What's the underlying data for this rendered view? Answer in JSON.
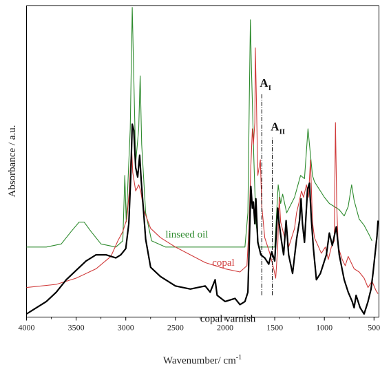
{
  "chart_data": {
    "type": "line",
    "title": "",
    "xlabel": "Wavenumber/ cm",
    "xlabel_sup": "-1",
    "ylabel": "Absorbance / a.u.",
    "xlim": [
      4000,
      450
    ],
    "x_reversed": true,
    "ylim": [
      0,
      100
    ],
    "y_tick_labels": false,
    "x_ticks": [
      4000,
      3500,
      3000,
      2500,
      2000,
      1500,
      1000,
      500
    ],
    "x_tick_labels": [
      "4000",
      "3500",
      "3000",
      "2500",
      "2000",
      "1500",
      "1000",
      "500"
    ],
    "grid": false,
    "legend": "none; series labelled inline",
    "series": [
      {
        "name": "linseed oil",
        "color": "#2e8b2e",
        "points": [
          [
            4000,
            22.5
          ],
          [
            3800,
            22.5
          ],
          [
            3650,
            23.5
          ],
          [
            3550,
            27.5
          ],
          [
            3470,
            30.5
          ],
          [
            3420,
            30.5
          ],
          [
            3350,
            27.5
          ],
          [
            3250,
            23.5
          ],
          [
            3100,
            22.5
          ],
          [
            3030,
            24.5
          ],
          [
            3010,
            45.5
          ],
          [
            2995,
            30.5
          ],
          [
            2975,
            45.5
          ],
          [
            2955,
            60.5
          ],
          [
            2935,
            99.5
          ],
          [
            2920,
            77.5
          ],
          [
            2900,
            49.5
          ],
          [
            2870,
            60.5
          ],
          [
            2855,
            77.5
          ],
          [
            2840,
            55.5
          ],
          [
            2800,
            33.5
          ],
          [
            2740,
            24.5
          ],
          [
            2600,
            22.5
          ],
          [
            2000,
            22.5
          ],
          [
            1800,
            22.5
          ],
          [
            1770,
            33.5
          ],
          [
            1755,
            72.5
          ],
          [
            1745,
            95.5
          ],
          [
            1735,
            80.5
          ],
          [
            1710,
            50.5
          ],
          [
            1690,
            30.5
          ],
          [
            1660,
            22.5
          ],
          [
            1600,
            22.5
          ],
          [
            1520,
            22.5
          ],
          [
            1500,
            22.5
          ],
          [
            1465,
            42.5
          ],
          [
            1440,
            36.5
          ],
          [
            1420,
            39.5
          ],
          [
            1380,
            33.5
          ],
          [
            1300,
            38.5
          ],
          [
            1240,
            45.5
          ],
          [
            1200,
            44.5
          ],
          [
            1165,
            60.5
          ],
          [
            1150,
            55.5
          ],
          [
            1120,
            45.5
          ],
          [
            1100,
            43.5
          ],
          [
            1000,
            38.5
          ],
          [
            950,
            36.5
          ],
          [
            900,
            35.5
          ],
          [
            850,
            34.5
          ],
          [
            800,
            32.5
          ],
          [
            760,
            35.5
          ],
          [
            725,
            42.5
          ],
          [
            700,
            37.5
          ],
          [
            650,
            31.5
          ],
          [
            600,
            29.5
          ],
          [
            550,
            26.5
          ],
          [
            520,
            24.5
          ]
        ]
      },
      {
        "name": "copal",
        "color": "#d03a3a",
        "points": [
          [
            4000,
            9.5
          ],
          [
            3700,
            10.5
          ],
          [
            3500,
            12.5
          ],
          [
            3300,
            15.5
          ],
          [
            3150,
            19.5
          ],
          [
            3080,
            24.5
          ],
          [
            3030,
            27.5
          ],
          [
            2990,
            31.5
          ],
          [
            2965,
            40.5
          ],
          [
            2950,
            50.5
          ],
          [
            2940,
            53.5
          ],
          [
            2930,
            46.5
          ],
          [
            2900,
            40.5
          ],
          [
            2870,
            42.5
          ],
          [
            2850,
            40.5
          ],
          [
            2820,
            34.5
          ],
          [
            2750,
            28.5
          ],
          [
            2650,
            25.5
          ],
          [
            2500,
            22.5
          ],
          [
            2200,
            17.5
          ],
          [
            2000,
            15.5
          ],
          [
            1850,
            14.5
          ],
          [
            1780,
            16.5
          ],
          [
            1760,
            28.5
          ],
          [
            1740,
            48.5
          ],
          [
            1725,
            60.5
          ],
          [
            1715,
            55.5
          ],
          [
            1700,
            62.5
          ],
          [
            1695,
            86.5
          ],
          [
            1685,
            70.5
          ],
          [
            1670,
            45.5
          ],
          [
            1645,
            50.5
          ],
          [
            1630,
            35.5
          ],
          [
            1600,
            25.5
          ],
          [
            1550,
            20.5
          ],
          [
            1510,
            15.5
          ],
          [
            1490,
            12.5
          ],
          [
            1470,
            22.5
          ],
          [
            1455,
            38.5
          ],
          [
            1440,
            30.5
          ],
          [
            1400,
            25.5
          ],
          [
            1385,
            30.5
          ],
          [
            1360,
            22.5
          ],
          [
            1300,
            28.5
          ],
          [
            1280,
            33.5
          ],
          [
            1250,
            37.5
          ],
          [
            1230,
            40.5
          ],
          [
            1210,
            38.5
          ],
          [
            1180,
            42.5
          ],
          [
            1160,
            38.5
          ],
          [
            1140,
            50.5
          ],
          [
            1120,
            30.5
          ],
          [
            1100,
            25.5
          ],
          [
            1030,
            20.5
          ],
          [
            990,
            22.5
          ],
          [
            960,
            18.5
          ],
          [
            930,
            22.5
          ],
          [
            900,
            24.5
          ],
          [
            888,
            62.5
          ],
          [
            875,
            35.5
          ],
          [
            860,
            22.5
          ],
          [
            820,
            18.5
          ],
          [
            790,
            16.5
          ],
          [
            760,
            19.5
          ],
          [
            700,
            15.5
          ],
          [
            650,
            14.5
          ],
          [
            600,
            12.5
          ],
          [
            560,
            9.5
          ],
          [
            520,
            11.5
          ],
          [
            480,
            8.5
          ],
          [
            460,
            7.5
          ]
        ]
      },
      {
        "name": "copal varnish",
        "color": "#000000",
        "points": [
          [
            4000,
            1.0
          ],
          [
            3900,
            3.0
          ],
          [
            3800,
            5.0
          ],
          [
            3700,
            8.0
          ],
          [
            3600,
            12.0
          ],
          [
            3500,
            15.0
          ],
          [
            3400,
            18.0
          ],
          [
            3300,
            20.0
          ],
          [
            3200,
            20.0
          ],
          [
            3100,
            19.0
          ],
          [
            3050,
            20.0
          ],
          [
            3000,
            22.0
          ],
          [
            2970,
            30.0
          ],
          [
            2950,
            45.0
          ],
          [
            2935,
            62.0
          ],
          [
            2920,
            60.0
          ],
          [
            2900,
            48.0
          ],
          [
            2880,
            45.0
          ],
          [
            2860,
            52.0
          ],
          [
            2845,
            44.0
          ],
          [
            2800,
            25.0
          ],
          [
            2750,
            16.0
          ],
          [
            2650,
            13.0
          ],
          [
            2500,
            10.0
          ],
          [
            2350,
            9.0
          ],
          [
            2200,
            10.0
          ],
          [
            2150,
            8.0
          ],
          [
            2100,
            12.0
          ],
          [
            2080,
            7.0
          ],
          [
            2000,
            5.0
          ],
          [
            1900,
            6.0
          ],
          [
            1850,
            4.0
          ],
          [
            1800,
            5.0
          ],
          [
            1770,
            8.0
          ],
          [
            1755,
            25.0
          ],
          [
            1740,
            42.0
          ],
          [
            1725,
            35.0
          ],
          [
            1715,
            37.0
          ],
          [
            1700,
            30.0
          ],
          [
            1690,
            38.0
          ],
          [
            1670,
            24.0
          ],
          [
            1640,
            20.0
          ],
          [
            1600,
            19.0
          ],
          [
            1560,
            17.0
          ],
          [
            1530,
            21.0
          ],
          [
            1500,
            18.0
          ],
          [
            1470,
            35.0
          ],
          [
            1455,
            30.0
          ],
          [
            1430,
            24.0
          ],
          [
            1410,
            20.0
          ],
          [
            1385,
            31.0
          ],
          [
            1360,
            20.0
          ],
          [
            1320,
            14.0
          ],
          [
            1280,
            25.0
          ],
          [
            1250,
            31.0
          ],
          [
            1235,
            38.0
          ],
          [
            1220,
            30.0
          ],
          [
            1200,
            24.0
          ],
          [
            1170,
            41.0
          ],
          [
            1150,
            43.0
          ],
          [
            1130,
            31.0
          ],
          [
            1110,
            22.0
          ],
          [
            1080,
            12.0
          ],
          [
            1040,
            14.0
          ],
          [
            1000,
            18.0
          ],
          [
            980,
            20.0
          ],
          [
            950,
            27.0
          ],
          [
            920,
            23.0
          ],
          [
            880,
            29.0
          ],
          [
            850,
            20.0
          ],
          [
            800,
            12.0
          ],
          [
            760,
            8.0
          ],
          [
            720,
            5.0
          ],
          [
            700,
            3.0
          ],
          [
            680,
            7.0
          ],
          [
            640,
            3.0
          ],
          [
            600,
            1.0
          ],
          [
            560,
            5.0
          ],
          [
            530,
            9.0
          ],
          [
            510,
            14.0
          ],
          [
            490,
            20.0
          ],
          [
            470,
            26.0
          ],
          [
            460,
            31.0
          ]
        ]
      }
    ],
    "series_labels": [
      {
        "text": "linseed oil",
        "color": "#2e8b2e",
        "x": 2600,
        "y": 25.5
      },
      {
        "text": "copal",
        "color": "#d03a3a",
        "x": 2130,
        "y": 16.5
      },
      {
        "text": "copal varnish",
        "color": "#111111",
        "x": 2250,
        "y": -1.5
      }
    ],
    "annotations": [
      {
        "label": "A",
        "subscript": "I",
        "x": 1630,
        "y_from": 7,
        "y_to": 72,
        "text_x": 1650,
        "text_y": 74
      },
      {
        "label": "A",
        "subscript": "II",
        "x": 1525,
        "y_from": 7,
        "y_to": 58,
        "text_x": 1540,
        "text_y": 60
      }
    ]
  }
}
